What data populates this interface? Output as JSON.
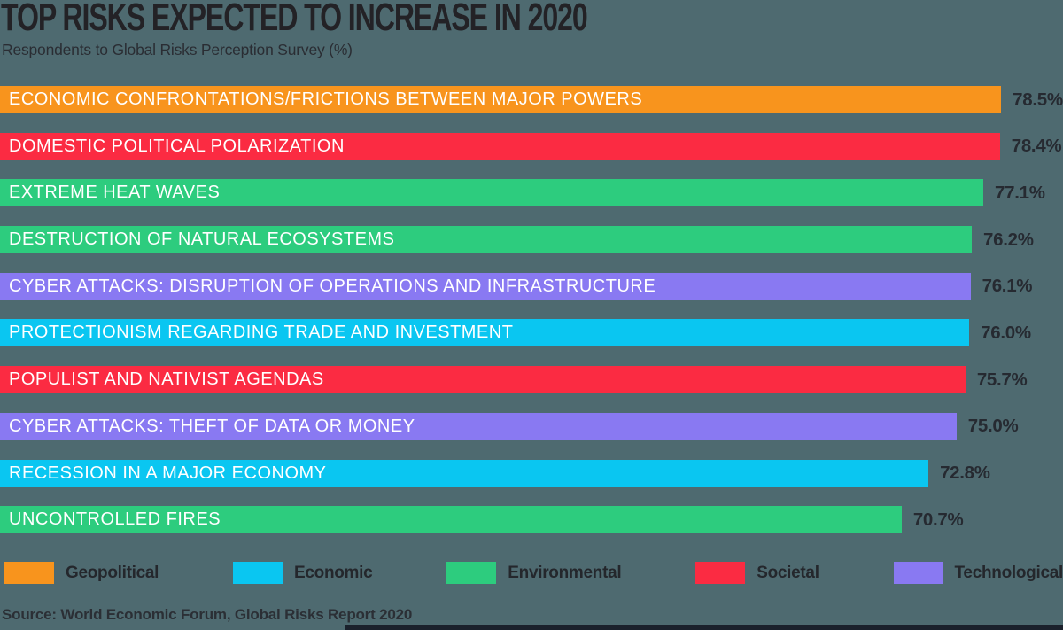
{
  "title": "TOP RISKS EXPECTED TO INCREASE IN 2020",
  "subtitle": "Respondents to Global Risks Perception Survey (%)",
  "source": "Source: World Economic Forum, Global Risks Report 2020",
  "colors": {
    "background": "#4E6A70",
    "heading_text": "#232226",
    "value_text": "#262A31",
    "bar_label_text": "#FFFFFF",
    "legend_text": "#24272C",
    "source_text": "#2B2F35",
    "bottom_strip": "#1B212C",
    "geopolitical": "#F8941D",
    "economic": "#0AC6F1",
    "environmental": "#2DCC7E",
    "societal": "#FB2B42",
    "technological": "#8979F2"
  },
  "chart_data": {
    "type": "bar",
    "orientation": "horizontal",
    "title": "TOP RISKS EXPECTED TO INCREASE IN 2020",
    "subtitle": "Respondents to Global Risks Perception Survey (%)",
    "xlabel": "",
    "ylabel": "",
    "unit": "%",
    "xlim": [
      0,
      83.35
    ],
    "grid": false,
    "legend_position": "bottom",
    "categories": [
      "ECONOMIC CONFRONTATIONS/FRICTIONS BETWEEN MAJOR POWERS",
      "DOMESTIC POLITICAL POLARIZATION",
      "EXTREME HEAT WAVES",
      "DESTRUCTION OF NATURAL ECOSYSTEMS",
      "CYBER ATTACKS: DISRUPTION OF OPERATIONS AND INFRASTRUCTURE",
      "PROTECTIONISM REGARDING TRADE AND INVESTMENT",
      "POPULIST AND NATIVIST AGENDAS",
      "CYBER ATTACKS: THEFT OF DATA OR MONEY",
      "RECESSION IN A MAJOR ECONOMY",
      "UNCONTROLLED FIRES"
    ],
    "values": [
      78.5,
      78.4,
      77.1,
      76.2,
      76.1,
      76.0,
      75.7,
      75.0,
      72.8,
      70.7
    ],
    "items": [
      {
        "label": "ECONOMIC CONFRONTATIONS/FRICTIONS BETWEEN MAJOR POWERS",
        "value": 78.5,
        "value_label": "78.5%",
        "category": "Geopolitical",
        "color": "#F8941D"
      },
      {
        "label": "DOMESTIC POLITICAL POLARIZATION",
        "value": 78.4,
        "value_label": "78.4%",
        "category": "Societal",
        "color": "#FB2B42"
      },
      {
        "label": "EXTREME HEAT WAVES",
        "value": 77.1,
        "value_label": "77.1%",
        "category": "Environmental",
        "color": "#2DCC7E"
      },
      {
        "label": "DESTRUCTION OF NATURAL ECOSYSTEMS",
        "value": 76.2,
        "value_label": "76.2%",
        "category": "Environmental",
        "color": "#2DCC7E"
      },
      {
        "label": "CYBER ATTACKS: DISRUPTION OF OPERATIONS AND INFRASTRUCTURE",
        "value": 76.1,
        "value_label": "76.1%",
        "category": "Technological",
        "color": "#8979F2"
      },
      {
        "label": "PROTECTIONISM REGARDING TRADE AND INVESTMENT",
        "value": 76.0,
        "value_label": "76.0%",
        "category": "Economic",
        "color": "#0AC6F1"
      },
      {
        "label": "POPULIST AND NATIVIST AGENDAS",
        "value": 75.7,
        "value_label": "75.7%",
        "category": "Societal",
        "color": "#FB2B42"
      },
      {
        "label": "CYBER ATTACKS: THEFT OF DATA OR MONEY",
        "value": 75.0,
        "value_label": "75.0%",
        "category": "Technological",
        "color": "#8979F2"
      },
      {
        "label": "RECESSION IN A MAJOR ECONOMY",
        "value": 72.8,
        "value_label": "72.8%",
        "category": "Economic",
        "color": "#0AC6F1"
      },
      {
        "label": "UNCONTROLLED FIRES",
        "value": 70.7,
        "value_label": "70.7%",
        "category": "Environmental",
        "color": "#2DCC7E"
      }
    ],
    "legend": [
      {
        "label": "Geopolitical",
        "color": "#F8941D"
      },
      {
        "label": "Economic",
        "color": "#0AC6F1"
      },
      {
        "label": "Environmental",
        "color": "#2DCC7E"
      },
      {
        "label": "Societal",
        "color": "#FB2B42"
      },
      {
        "label": "Technological",
        "color": "#8979F2"
      }
    ]
  }
}
